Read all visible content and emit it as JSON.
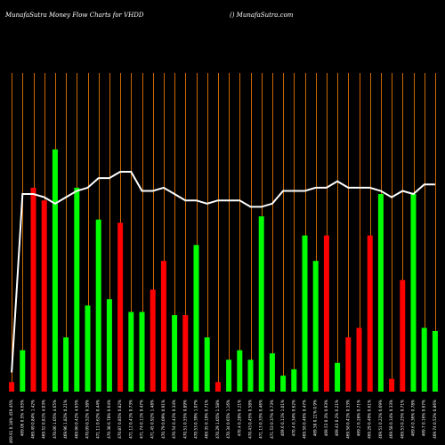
{
  "header": {
    "title_left": "MunafaSutra  Money Flow  Charts for VHDD",
    "title_right": "() MunafaSutra.com"
  },
  "chart_data": {
    "type": "bar",
    "colors": {
      "up": "#00ff00",
      "down": "#ff0000",
      "line": "#ffffff",
      "grid": "#cc6600",
      "background": "#000000"
    },
    "categories": [
      "469.91 0.18% 459.45%",
      "469.06 0.5% 4.65%",
      "469.49 0.84% 1.42%",
      "469.52 0.81% 4.03%",
      "470.06 1.05% 4.65%",
      "469.96 1.82% 0.21%",
      "469.96 0.42% 4.65%",
      "470.09 0.52% 0.38%",
      "471.11 0.62% 0.44%",
      "470.38 0.78% 0.64%",
      "470.87 0.85% 0.82%",
      "471.12 0.41% 0.73%",
      "471.74 0.11% 0.47%",
      "471.45 0.92% 1.48%",
      "470.79 0.09% 0.91%",
      "470.54 0.42% 0.34%",
      "470.51 0.55% 0.89%",
      "470.53 0.39% 1.07%",
      "469.35 0.19% 0.71%",
      "470.29 1.05% 1.58%",
      "470.34 0.65% 1.16%",
      "470.4 0.28% 0.21%",
      "470.43 0.45% 0.58%",
      "471.13 0.33% 0.46%",
      "471.53 0.37% 0.73%",
      "469.6 0.11% 1.01%",
      "470.4 0.34% 0.62%",
      "469.56 0.46% 0.47%",
      "469.58 0.21% 0.9%",
      "469.53 0.3% 0.93%",
      "469.43 0.2% 0.21%",
      "469.58 0.41% 0.33%",
      "469.2 0.28% 0.71%",
      "469.29 0.49% 0.61%",
      "469.51 0.22% 0.69%",
      "469.58 0.14% 0.33%",
      "469.53 0.25% 0.71%",
      "469.6 0.36% 0.78%",
      "469.7 0.16% 0.67%",
      "469.74 0.52% 0.86%"
    ],
    "money_flow": [
      {
        "dir": "down",
        "value": 3
      },
      {
        "dir": "up",
        "value": 13
      },
      {
        "dir": "down",
        "value": 64
      },
      {
        "dir": "down",
        "value": 60
      },
      {
        "dir": "up",
        "value": 76
      },
      {
        "dir": "up",
        "value": 17
      },
      {
        "dir": "up",
        "value": 64
      },
      {
        "dir": "up",
        "value": 27
      },
      {
        "dir": "up",
        "value": 54
      },
      {
        "dir": "up",
        "value": 29
      },
      {
        "dir": "down",
        "value": 53
      },
      {
        "dir": "up",
        "value": 25
      },
      {
        "dir": "up",
        "value": 25
      },
      {
        "dir": "down",
        "value": 32
      },
      {
        "dir": "down",
        "value": 41
      },
      {
        "dir": "up",
        "value": 24
      },
      {
        "dir": "down",
        "value": 24
      },
      {
        "dir": "up",
        "value": 46
      },
      {
        "dir": "up",
        "value": 17
      },
      {
        "dir": "down",
        "value": 3
      },
      {
        "dir": "up",
        "value": 10
      },
      {
        "dir": "up",
        "value": 13
      },
      {
        "dir": "up",
        "value": 10
      },
      {
        "dir": "up",
        "value": 55
      },
      {
        "dir": "up",
        "value": 12
      },
      {
        "dir": "up",
        "value": 5
      },
      {
        "dir": "up",
        "value": 7
      },
      {
        "dir": "up",
        "value": 49
      },
      {
        "dir": "up",
        "value": 41
      },
      {
        "dir": "down",
        "value": 49
      },
      {
        "dir": "up",
        "value": 9
      },
      {
        "dir": "down",
        "value": 17
      },
      {
        "dir": "down",
        "value": 20
      },
      {
        "dir": "down",
        "value": 49
      },
      {
        "dir": "up",
        "value": 62
      },
      {
        "dir": "down",
        "value": 4
      },
      {
        "dir": "down",
        "value": 35
      },
      {
        "dir": "up",
        "value": 62
      },
      {
        "dir": "up",
        "value": 20
      },
      {
        "dir": "up",
        "value": 19
      }
    ],
    "line_values": [
      6,
      62,
      62,
      61,
      59,
      61,
      63,
      64,
      67,
      67,
      69,
      69,
      63,
      63,
      64,
      62,
      60,
      60,
      59,
      60,
      60,
      60,
      58,
      58,
      59,
      63,
      63,
      63,
      64,
      64,
      66,
      64,
      64,
      64,
      63,
      61,
      63,
      62,
      65,
      65
    ],
    "ylim": [
      0,
      100
    ],
    "grid": true
  }
}
